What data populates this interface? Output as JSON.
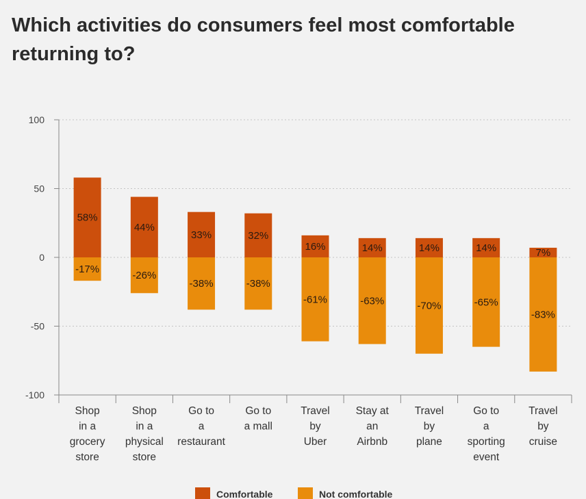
{
  "title": "Which activities do consumers feel most comfortable returning to?",
  "chart_data": {
    "type": "bar",
    "stacked": true,
    "categories": [
      "Shop in a grocery store",
      "Shop in a physical store",
      "Go to a restaurant",
      "Go to a mall",
      "Travel by Uber",
      "Stay at an Airbnb",
      "Travel by plane",
      "Go to a sporting event",
      "Travel by cruise"
    ],
    "category_lines": [
      [
        "Shop",
        "in a",
        "grocery",
        "store"
      ],
      [
        "Shop",
        "in a",
        "physical",
        "store"
      ],
      [
        "Go to",
        "a",
        "restaurant"
      ],
      [
        "Go to",
        "a mall"
      ],
      [
        "Travel",
        "by",
        "Uber"
      ],
      [
        "Stay at",
        "an",
        "Airbnb"
      ],
      [
        "Travel",
        "by",
        "plane"
      ],
      [
        "Go to",
        "a",
        "sporting",
        "event"
      ],
      [
        "Travel",
        "by",
        "cruise"
      ]
    ],
    "series": [
      {
        "name": "Comfortable",
        "color": "#cc4f0c",
        "values": [
          58,
          44,
          33,
          32,
          16,
          14,
          14,
          14,
          7
        ],
        "labels": [
          "58%",
          "44%",
          "33%",
          "32%",
          "16%",
          "14%",
          "14%",
          "14%",
          "7%"
        ]
      },
      {
        "name": "Not comfortable",
        "color": "#e98c0c",
        "values": [
          -17,
          -26,
          -38,
          -38,
          -61,
          -63,
          -70,
          -65,
          -83
        ],
        "labels": [
          "-17%",
          "-26%",
          "-38%",
          "-38%",
          "-61%",
          "-63%",
          "-70%",
          "-65%",
          "-83%"
        ]
      }
    ],
    "ylim": [
      -100,
      100
    ],
    "yticks": [
      100,
      50,
      0,
      -50,
      -100
    ],
    "grid": true,
    "legend_position": "bottom"
  }
}
